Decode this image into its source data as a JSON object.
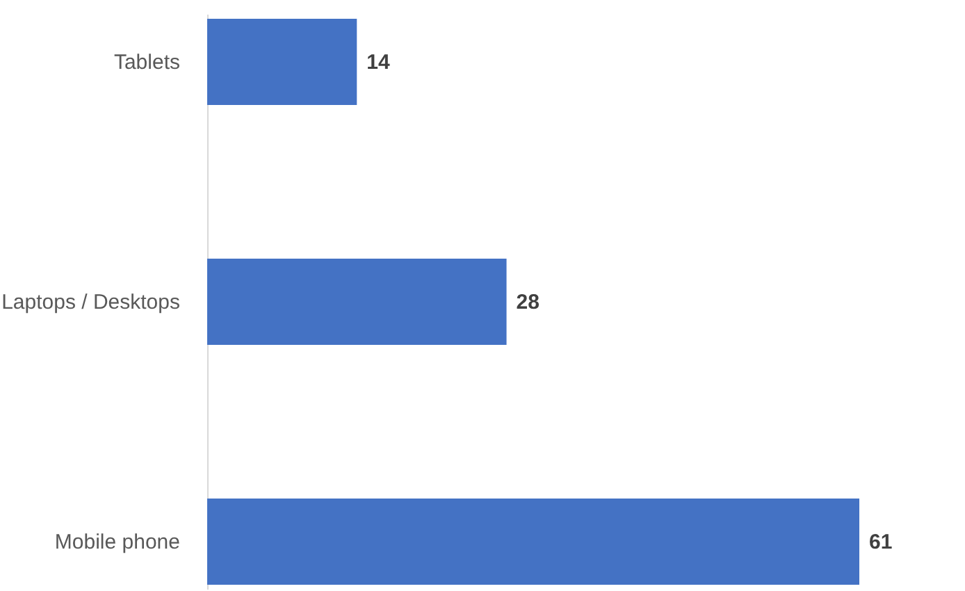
{
  "chart_data": {
    "type": "bar",
    "orientation": "horizontal",
    "categories": [
      "Tablets",
      "Laptops / Desktops",
      "Mobile phone"
    ],
    "values": [
      14,
      28,
      61
    ],
    "color": "#4472c4",
    "data_labels": true
  }
}
